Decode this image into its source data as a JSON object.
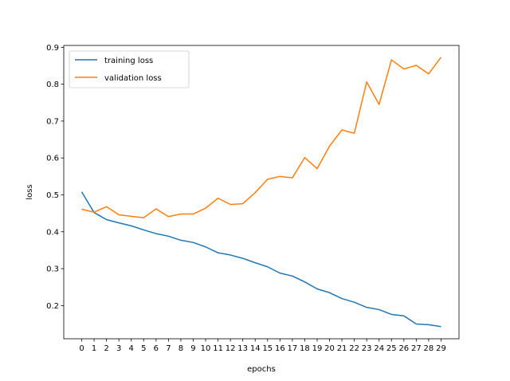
{
  "chart_data": {
    "type": "line",
    "title": "",
    "xlabel": "epochs",
    "ylabel": "loss",
    "x": [
      0,
      1,
      2,
      3,
      4,
      5,
      6,
      7,
      8,
      9,
      10,
      11,
      12,
      13,
      14,
      15,
      16,
      17,
      18,
      19,
      20,
      21,
      22,
      23,
      24,
      25,
      26,
      27,
      28,
      29
    ],
    "xlim": [
      -1.45,
      30.45
    ],
    "ylim": [
      0.11,
      0.905
    ],
    "yticks": [
      0.2,
      0.3,
      0.4,
      0.5,
      0.6,
      0.7,
      0.8,
      0.9
    ],
    "yticklabels": [
      "0.2",
      "0.3",
      "0.4",
      "0.5",
      "0.6",
      "0.7",
      "0.8",
      "0.9"
    ],
    "grid": false,
    "legend_position": "top-left",
    "series": [
      {
        "name": "training loss",
        "color": "#1f77b4",
        "values": [
          0.508,
          0.452,
          0.433,
          0.424,
          0.416,
          0.405,
          0.395,
          0.388,
          0.377,
          0.371,
          0.359,
          0.343,
          0.337,
          0.328,
          0.316,
          0.305,
          0.288,
          0.28,
          0.264,
          0.245,
          0.235,
          0.219,
          0.209,
          0.195,
          0.189,
          0.176,
          0.172,
          0.15,
          0.148,
          0.143
        ]
      },
      {
        "name": "validation loss",
        "color": "#ff7f0e",
        "values": [
          0.461,
          0.453,
          0.468,
          0.446,
          0.442,
          0.438,
          0.462,
          0.441,
          0.448,
          0.448,
          0.464,
          0.491,
          0.474,
          0.476,
          0.506,
          0.542,
          0.55,
          0.546,
          0.601,
          0.571,
          0.632,
          0.676,
          0.667,
          0.806,
          0.745,
          0.866,
          0.841,
          0.851,
          0.828,
          0.873
        ]
      }
    ]
  }
}
